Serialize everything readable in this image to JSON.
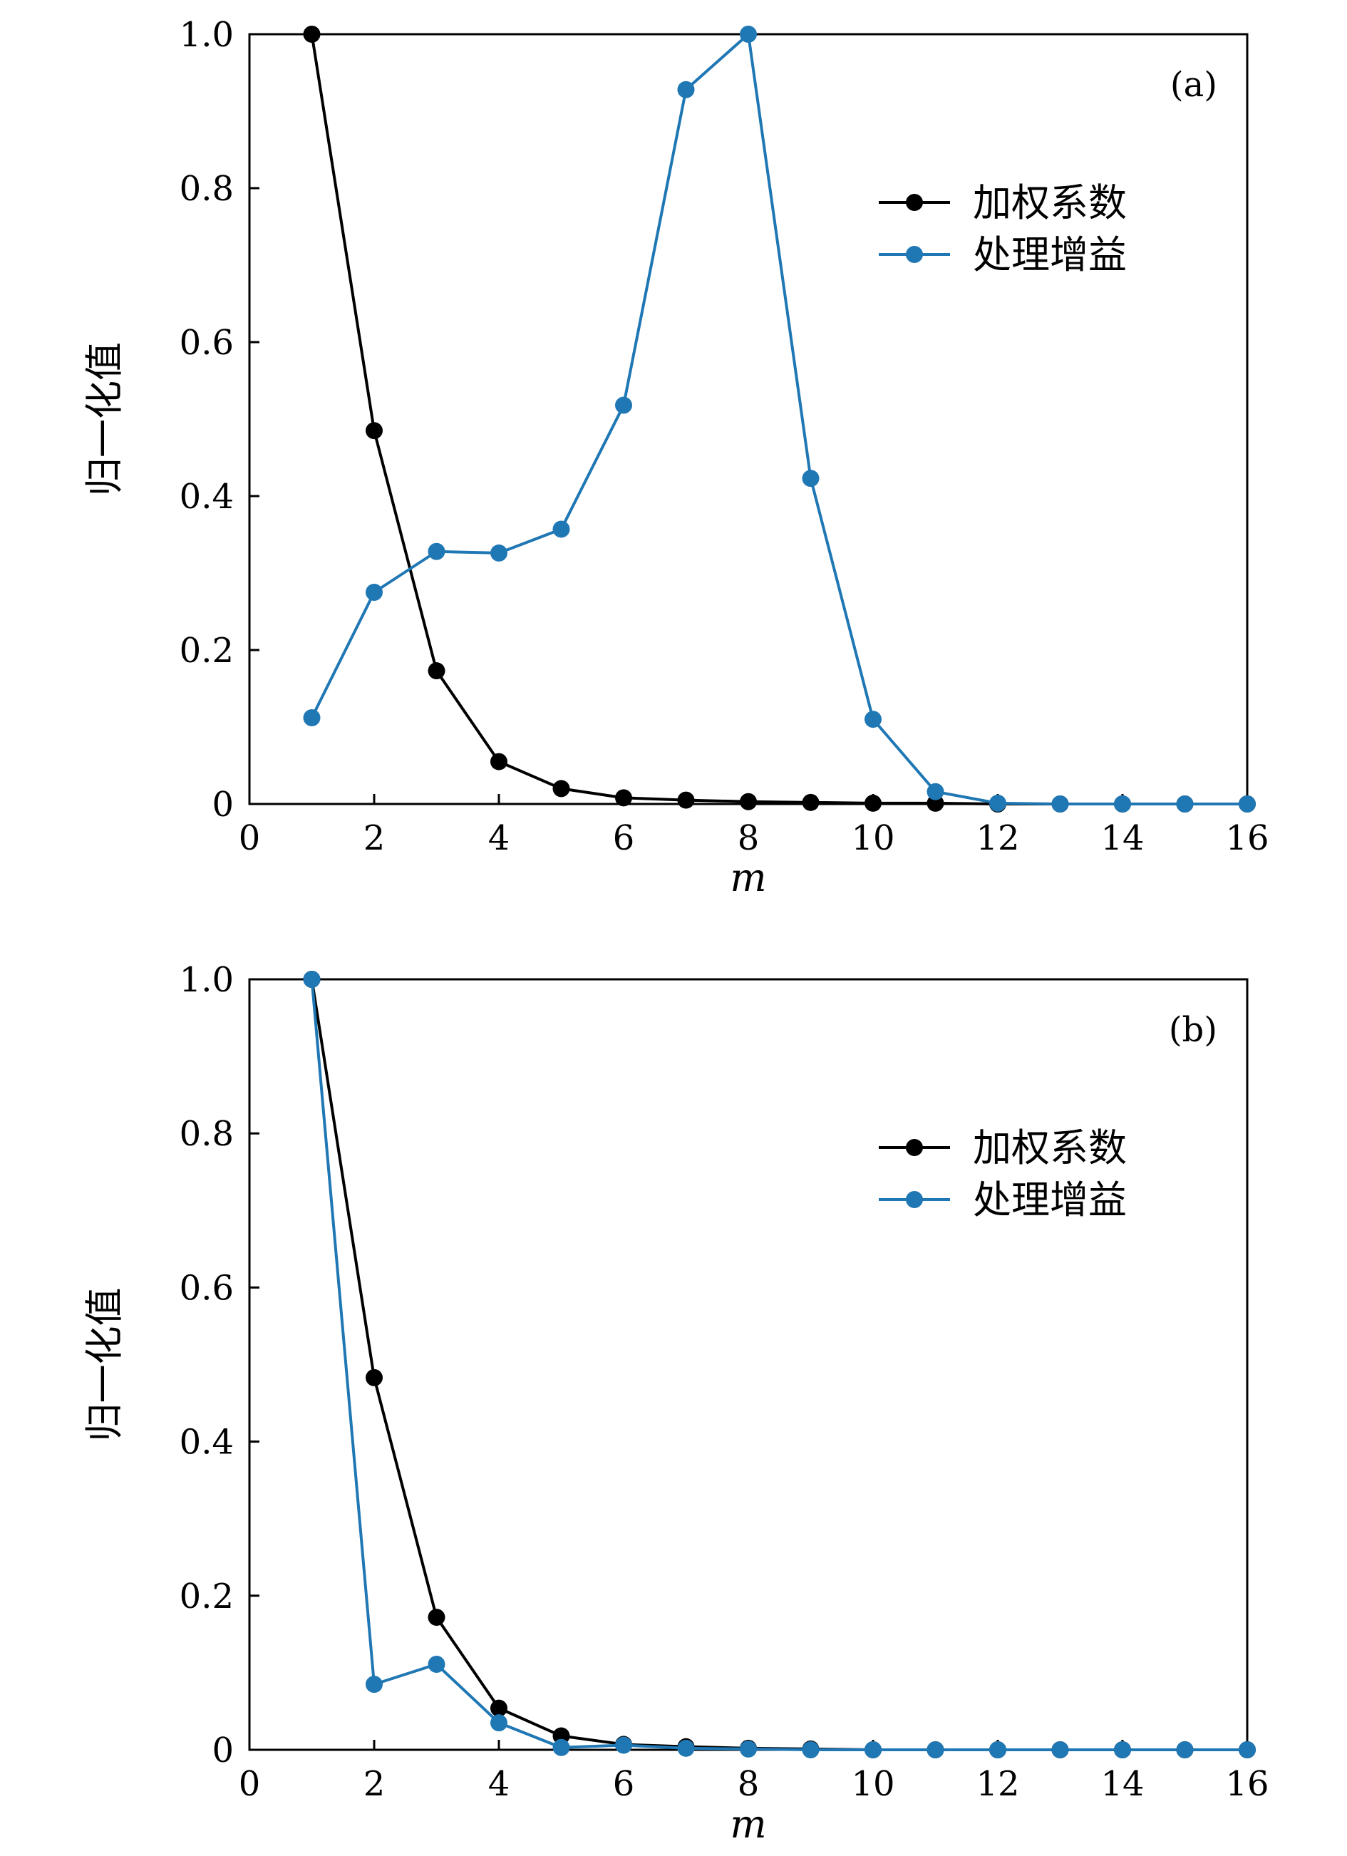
{
  "chart_data": [
    {
      "type": "line",
      "panel_label": "(a)",
      "xlabel": "m",
      "ylabel": "归一化值",
      "xlim": [
        0,
        16
      ],
      "ylim": [
        0,
        1.0
      ],
      "xticks": [
        "0",
        "2",
        "4",
        "6",
        "8",
        "10",
        "12",
        "14",
        "16"
      ],
      "yticks": [
        "0",
        "0.2",
        "0.4",
        "0.6",
        "0.8",
        "1.0"
      ],
      "grid": false,
      "legend_position": "upper-right",
      "x": [
        1,
        2,
        3,
        4,
        5,
        6,
        7,
        8,
        9,
        10,
        11,
        12,
        13,
        14,
        15,
        16
      ],
      "series": [
        {
          "name": "加权系数",
          "color": "#000000",
          "values": [
            1.0,
            0.485,
            0.173,
            0.055,
            0.02,
            0.008,
            0.005,
            0.003,
            0.002,
            0.001,
            0.001,
            0.0,
            0.0,
            0.0,
            0.0,
            0.0
          ]
        },
        {
          "name": "处理增益",
          "color": "#1f77b4",
          "values": [
            0.112,
            0.275,
            0.328,
            0.326,
            0.357,
            0.518,
            0.928,
            1.0,
            0.423,
            0.11,
            0.016,
            0.001,
            0.0,
            0.0,
            0.0,
            0.0
          ]
        }
      ]
    },
    {
      "type": "line",
      "panel_label": "(b)",
      "xlabel": "m",
      "ylabel": "归一化值",
      "xlim": [
        0,
        16
      ],
      "ylim": [
        0,
        1.0
      ],
      "xticks": [
        "0",
        "2",
        "4",
        "6",
        "8",
        "10",
        "12",
        "14",
        "16"
      ],
      "yticks": [
        "0",
        "0.2",
        "0.4",
        "0.6",
        "0.8",
        "1.0"
      ],
      "grid": false,
      "legend_position": "upper-right",
      "x": [
        1,
        2,
        3,
        4,
        5,
        6,
        7,
        8,
        9,
        10,
        11,
        12,
        13,
        14,
        15,
        16
      ],
      "series": [
        {
          "name": "加权系数",
          "color": "#000000",
          "values": [
            1.0,
            0.483,
            0.172,
            0.054,
            0.018,
            0.007,
            0.004,
            0.002,
            0.001,
            0.0,
            0.0,
            0.0,
            0.0,
            0.0,
            0.0,
            0.0
          ]
        },
        {
          "name": "处理增益",
          "color": "#1f77b4",
          "values": [
            1.0,
            0.085,
            0.111,
            0.035,
            0.003,
            0.006,
            0.002,
            0.001,
            0.0,
            0.0,
            0.0,
            0.0,
            0.0,
            0.0,
            0.0,
            0.0
          ]
        }
      ]
    }
  ]
}
